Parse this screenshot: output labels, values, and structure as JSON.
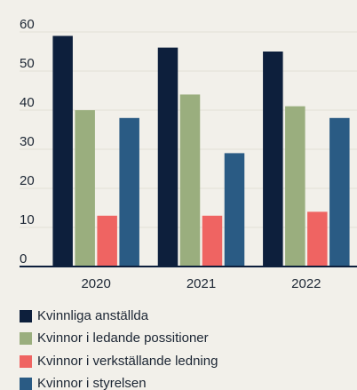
{
  "chart_data": {
    "type": "bar",
    "categories": [
      "2020",
      "2021",
      "2022"
    ],
    "series": [
      {
        "name": "Kvinnliga anställda",
        "color": "#0d1f3c",
        "values": [
          59,
          56,
          55
        ]
      },
      {
        "name": "Kvinnor i ledande possitioner",
        "color": "#9aae7e",
        "values": [
          40,
          44,
          41
        ]
      },
      {
        "name": "Kvinnor i verkställande ledning",
        "color": "#ef6462",
        "values": [
          13,
          13,
          14
        ]
      },
      {
        "name": "Kvinnor i styrelsen",
        "color": "#2a5b84",
        "values": [
          38,
          29,
          38
        ]
      }
    ],
    "ylim": [
      0,
      60
    ],
    "yticks": [
      0,
      10,
      20,
      30,
      40,
      50,
      60
    ],
    "grid": true,
    "legend": "bottom"
  }
}
